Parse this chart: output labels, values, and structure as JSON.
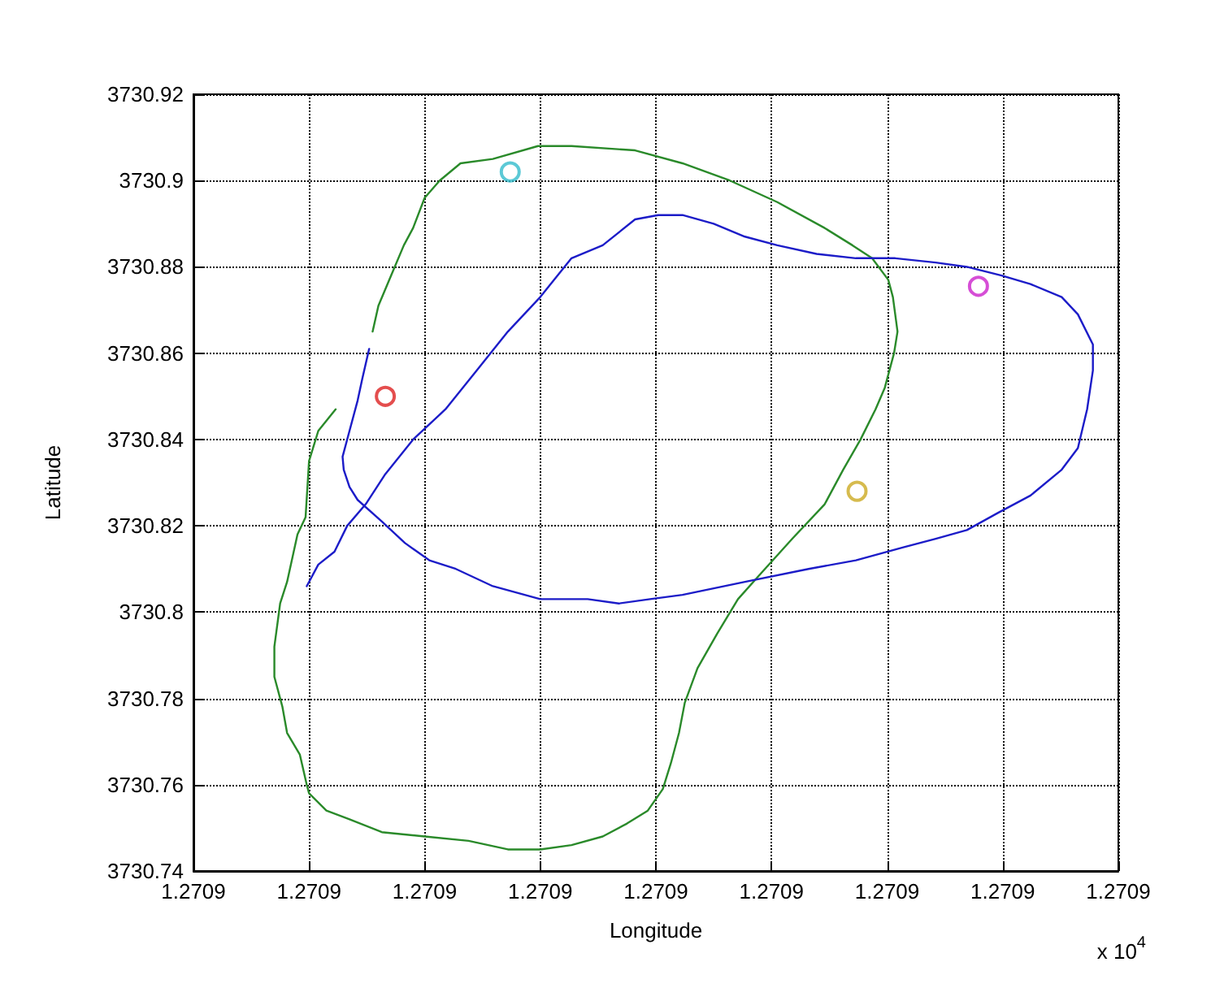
{
  "chart_data": {
    "type": "line",
    "xlabel": "Longitude",
    "ylabel": "Latitude",
    "annotations": [
      "x 10$^{4}$"
    ],
    "xlim": [
      1.2709,
      1.270908
    ],
    "xticks": [
      {
        "value": 1.2709,
        "label": "1.2709"
      },
      {
        "value": 1.270901,
        "label": "1.2709"
      },
      {
        "value": 1.270902,
        "label": "1.2709"
      },
      {
        "value": 1.270903,
        "label": "1.2709"
      },
      {
        "value": 1.270904,
        "label": "1.2709"
      },
      {
        "value": 1.270905,
        "label": "1.2709"
      },
      {
        "value": 1.270906,
        "label": "1.2709"
      },
      {
        "value": 1.270907,
        "label": "1.2709"
      },
      {
        "value": 1.270908,
        "label": "1.2709"
      }
    ],
    "ylim": [
      3730.74,
      3730.92
    ],
    "yticks": [
      3730.74,
      3730.76,
      3730.78,
      3730.8,
      3730.82,
      3730.84,
      3730.86,
      3730.88,
      3730.9,
      3730.92
    ],
    "grid": true,
    "marker": "none",
    "line_style": "solid",
    "series": [
      {
        "color": "#2a8a2a",
        "x": [
          1.27090123,
          1.27090108,
          1.270901,
          1.27090097,
          1.2709009,
          1.27090081,
          1.27090075,
          1.2709007,
          1.2709007,
          1.27090077,
          1.27090081,
          1.27090092,
          1.27090098,
          1.270901,
          1.27090115,
          1.27090135,
          1.27090163,
          1.270902,
          1.27090238,
          1.27090272,
          1.270903,
          1.27090327,
          1.27090354,
          1.27090375,
          1.27090393,
          1.27090406,
          1.27090413,
          1.2709042,
          1.27090425,
          1.27090436,
          1.27090453,
          1.27090471,
          1.27090491,
          1.27090518,
          1.27090546,
          1.27090562,
          1.27090577,
          1.2709059,
          1.27090598,
          1.27090606,
          1.27090609,
          1.27090605,
          1.27090601,
          1.27090587,
          1.2709057,
          1.27090546,
          1.27090505,
          1.27090464,
          1.27090423,
          1.27090382,
          1.27090327,
          1.27090298,
          1.27090259,
          1.27090231,
          1.27090213,
          1.270902,
          1.2709019,
          1.27090182,
          1.27090171,
          1.2709016,
          1.27090155
        ],
        "values": [
          3730.847,
          3730.842,
          3730.835,
          3730.822,
          3730.818,
          3730.807,
          3730.802,
          3730.792,
          3730.785,
          3730.778,
          3730.772,
          3730.767,
          3730.76,
          3730.758,
          3730.754,
          3730.752,
          3730.749,
          3730.748,
          3730.747,
          3730.745,
          3730.745,
          3730.746,
          3730.748,
          3730.751,
          3730.754,
          3730.759,
          3730.765,
          3730.772,
          3730.779,
          3730.787,
          3730.795,
          3730.803,
          3730.809,
          3730.817,
          3730.825,
          3730.833,
          3730.84,
          3730.847,
          3730.852,
          3730.86,
          3730.865,
          3730.873,
          3730.877,
          3730.882,
          3730.885,
          3730.889,
          3730.895,
          3730.9,
          3730.904,
          3730.907,
          3730.908,
          3730.908,
          3730.905,
          3730.904,
          3730.9,
          3730.896,
          3730.889,
          3730.885,
          3730.878,
          3730.871,
          3730.865
        ]
      },
      {
        "color": "#1c1cc8",
        "x": [
          1.27090098,
          1.27090108,
          1.27090122,
          1.27090133,
          1.27090149,
          1.27090166,
          1.2709019,
          1.27090218,
          1.27090245,
          1.27090272,
          1.270903,
          1.27090327,
          1.27090354,
          1.27090382,
          1.27090402,
          1.27090423,
          1.2709045,
          1.27090477,
          1.27090505,
          1.27090539,
          1.27090573,
          1.27090607,
          1.27090642,
          1.27090669,
          1.27090699,
          1.27090724,
          1.27090751,
          1.27090765,
          1.27090778,
          1.27090778,
          1.27090773,
          1.27090765,
          1.27090751,
          1.27090724,
          1.27090696,
          1.27090669,
          1.27090642,
          1.27090614,
          1.27090573,
          1.27090532,
          1.27090477,
          1.27090423,
          1.27090395,
          1.27090368,
          1.27090341,
          1.270903,
          1.27090259,
          1.27090227,
          1.27090204,
          1.27090183,
          1.27090163,
          1.27090142,
          1.27090135,
          1.2709013,
          1.27090129,
          1.27090135,
          1.27090142,
          1.27090146,
          1.27090152
        ],
        "values": [
          3730.806,
          3730.811,
          3730.814,
          3730.82,
          3730.825,
          3730.832,
          3730.84,
          3730.847,
          3730.856,
          3730.865,
          3730.873,
          3730.882,
          3730.885,
          3730.891,
          3730.892,
          3730.892,
          3730.89,
          3730.887,
          3730.885,
          3730.883,
          3730.882,
          3730.882,
          3730.881,
          3730.88,
          3730.878,
          3730.876,
          3730.873,
          3730.869,
          3730.862,
          3730.856,
          3730.847,
          3730.838,
          3730.833,
          3730.827,
          3730.823,
          3730.819,
          3730.817,
          3730.815,
          3730.812,
          3730.81,
          3730.807,
          3730.804,
          3730.803,
          3730.802,
          3730.803,
          3730.803,
          3730.806,
          3730.81,
          3730.812,
          3730.816,
          3730.821,
          3730.826,
          3730.829,
          3730.833,
          3730.836,
          3730.842,
          3730.849,
          3730.854,
          3730.861
        ]
      },
      {
        "type": "scatter",
        "marker": "circle",
        "x": [
          1.27090274,
          1.27090166,
          1.27090679,
          1.27090574
        ],
        "values": [
          3730.902,
          3730.85,
          3730.8755,
          3730.828
        ],
        "colors": [
          "#33bbcc",
          "#dd2222",
          "#cc22cc",
          "#ccaa22"
        ]
      }
    ]
  }
}
